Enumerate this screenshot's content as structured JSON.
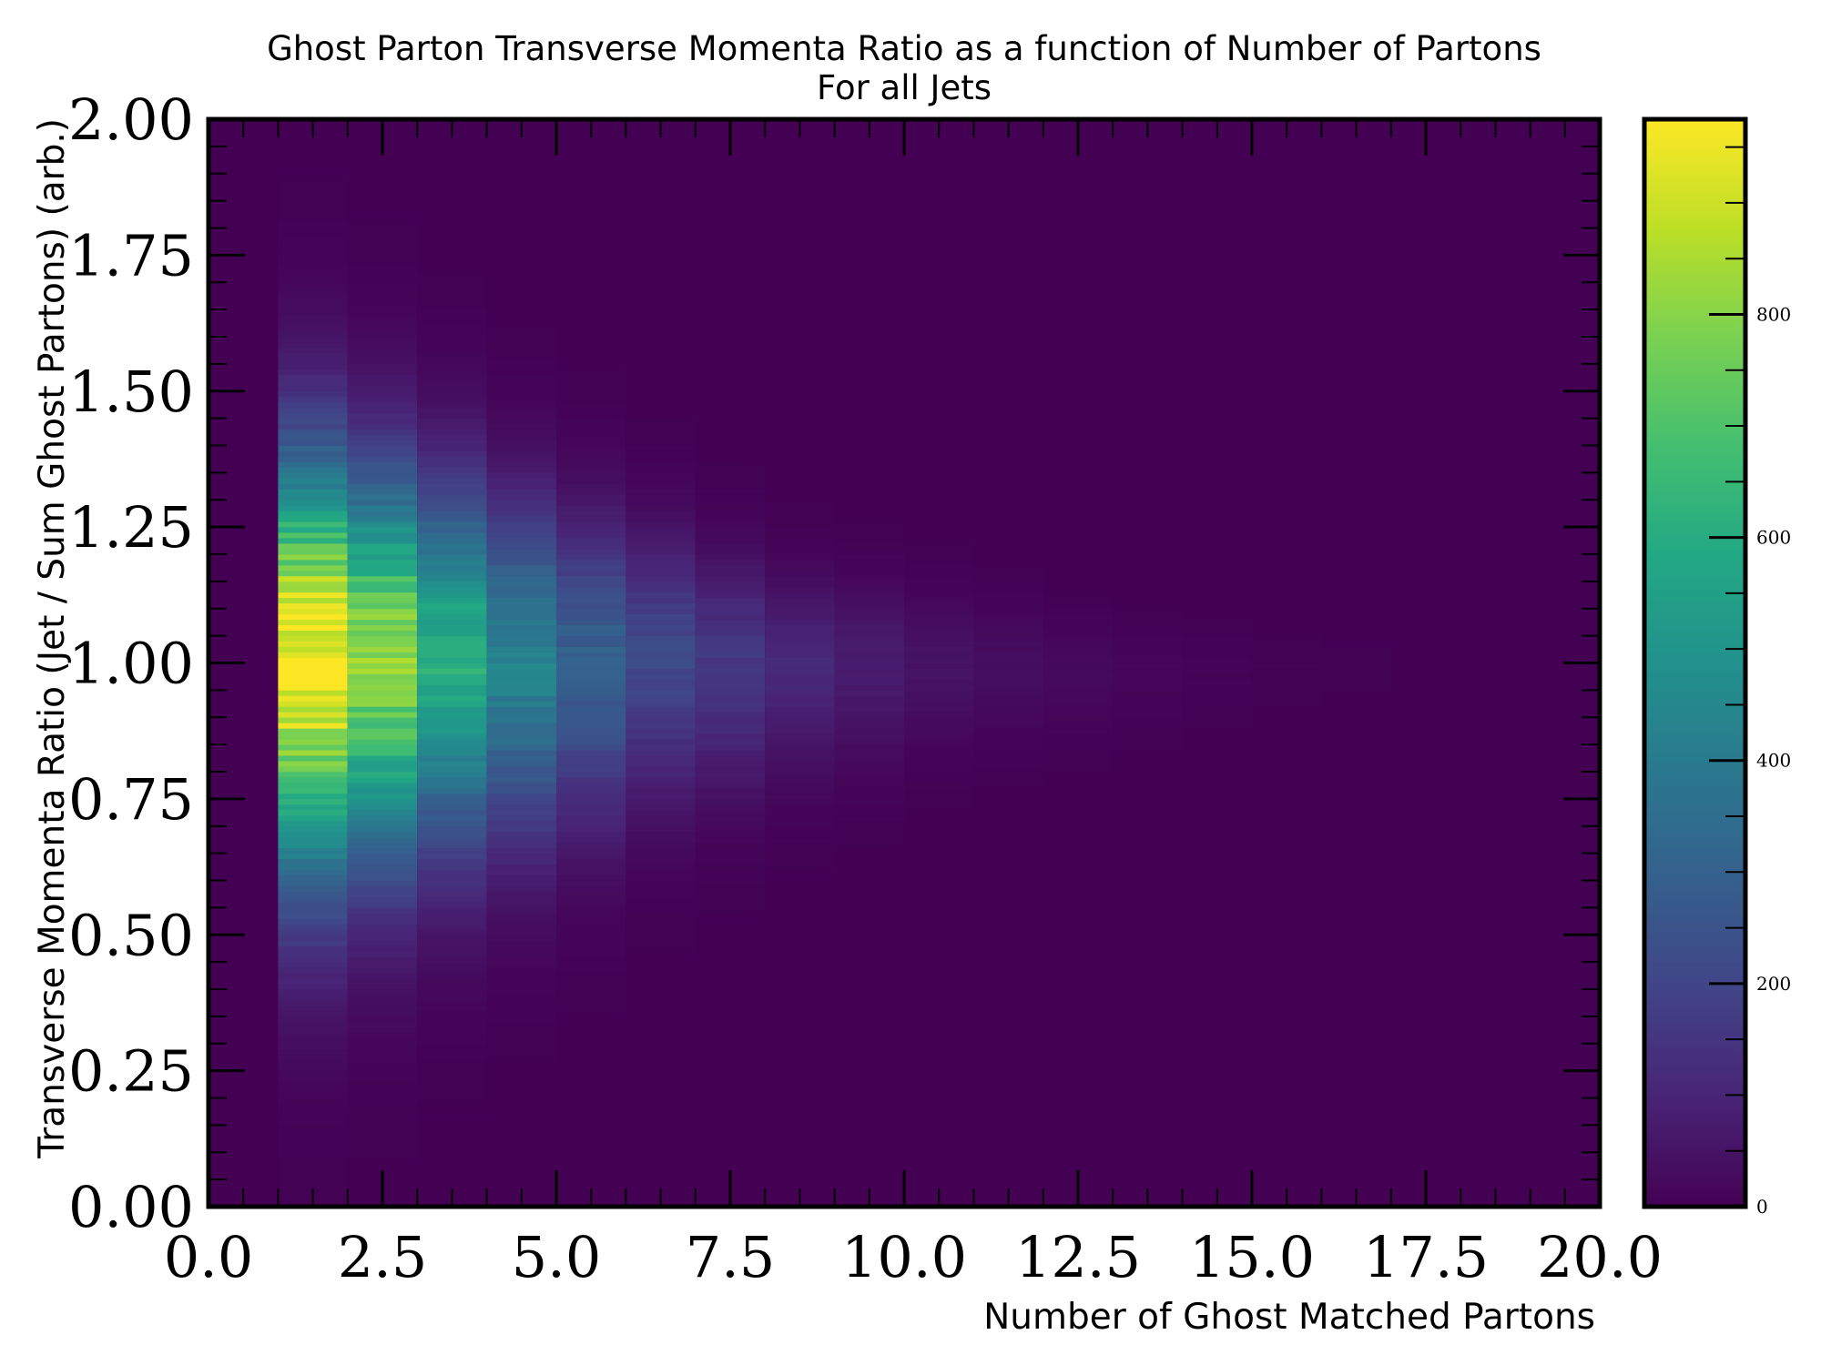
{
  "chart_data": {
    "type": "heatmap",
    "title": "Ghost Parton Transverse Momenta Ratio as a function of Number of Partons",
    "subtitle": "For all Jets",
    "xlabel": "Number of Ghost Matched Partons",
    "ylabel": "Transverse Momenta Ratio (Jet / Sum Ghost Partons) (arb.)",
    "xlim": [
      0,
      20
    ],
    "ylim": [
      0,
      2
    ],
    "xticks": [
      0,
      2.5,
      5,
      7.5,
      10,
      12.5,
      15,
      17.5,
      20
    ],
    "xtick_labels": [
      "0.0",
      "2.5",
      "5.0",
      "7.5",
      "10.0",
      "12.5",
      "15.0",
      "17.5",
      "20.0"
    ],
    "yticks": [
      0,
      0.25,
      0.5,
      0.75,
      1.0,
      1.25,
      1.5,
      1.75,
      2.0
    ],
    "ytick_labels": [
      "0.00",
      "0.25",
      "0.50",
      "0.75",
      "1.00",
      "1.25",
      "1.50",
      "1.75",
      "2.00"
    ],
    "x_bins": [
      0,
      1,
      2,
      3,
      4,
      5,
      6,
      7,
      8,
      9,
      10,
      11,
      12,
      13,
      14,
      15,
      16,
      17,
      18,
      19,
      20
    ],
    "y_bin_width": 0.01,
    "column_profiles": [
      {
        "x_bin": [
          1,
          2
        ],
        "peak_count": 975,
        "peak_y": 1.02,
        "sigma_lo": 0.28,
        "sigma_hi": 0.24
      },
      {
        "x_bin": [
          2,
          3
        ],
        "peak_count": 800,
        "peak_y": 1.02,
        "sigma_lo": 0.26,
        "sigma_hi": 0.22
      },
      {
        "x_bin": [
          3,
          4
        ],
        "peak_count": 600,
        "peak_y": 1.02,
        "sigma_lo": 0.24,
        "sigma_hi": 0.2
      },
      {
        "x_bin": [
          4,
          5
        ],
        "peak_count": 430,
        "peak_y": 1.01,
        "sigma_lo": 0.22,
        "sigma_hi": 0.18
      },
      {
        "x_bin": [
          5,
          6
        ],
        "peak_count": 300,
        "peak_y": 1.01,
        "sigma_lo": 0.2,
        "sigma_hi": 0.16
      },
      {
        "x_bin": [
          6,
          7
        ],
        "peak_count": 210,
        "peak_y": 1.01,
        "sigma_lo": 0.17,
        "sigma_hi": 0.14
      },
      {
        "x_bin": [
          7,
          8
        ],
        "peak_count": 160,
        "peak_y": 1.0,
        "sigma_lo": 0.15,
        "sigma_hi": 0.12
      },
      {
        "x_bin": [
          8,
          9
        ],
        "peak_count": 110,
        "peak_y": 1.0,
        "sigma_lo": 0.13,
        "sigma_hi": 0.1
      },
      {
        "x_bin": [
          9,
          10
        ],
        "peak_count": 75,
        "peak_y": 1.0,
        "sigma_lo": 0.12,
        "sigma_hi": 0.09
      },
      {
        "x_bin": [
          10,
          11
        ],
        "peak_count": 50,
        "peak_y": 1.0,
        "sigma_lo": 0.1,
        "sigma_hi": 0.08
      },
      {
        "x_bin": [
          11,
          12
        ],
        "peak_count": 35,
        "peak_y": 1.0,
        "sigma_lo": 0.09,
        "sigma_hi": 0.07
      },
      {
        "x_bin": [
          12,
          13
        ],
        "peak_count": 24,
        "peak_y": 0.99,
        "sigma_lo": 0.08,
        "sigma_hi": 0.06
      },
      {
        "x_bin": [
          13,
          14
        ],
        "peak_count": 15,
        "peak_y": 0.99,
        "sigma_lo": 0.07,
        "sigma_hi": 0.05
      },
      {
        "x_bin": [
          14,
          15
        ],
        "peak_count": 8,
        "peak_y": 0.99,
        "sigma_lo": 0.06,
        "sigma_hi": 0.05
      },
      {
        "x_bin": [
          15,
          16
        ],
        "peak_count": 4,
        "peak_y": 0.99,
        "sigma_lo": 0.05,
        "sigma_hi": 0.04
      },
      {
        "x_bin": [
          16,
          17
        ],
        "peak_count": 2,
        "peak_y": 0.99,
        "sigma_lo": 0.05,
        "sigma_hi": 0.04
      }
    ],
    "colormap": "viridis",
    "colorbar": {
      "range": [
        0,
        975
      ],
      "ticks": [
        0,
        200,
        400,
        600,
        800
      ],
      "tick_labels": [
        "0",
        "200",
        "400",
        "600",
        "800"
      ],
      "minor_step": 50
    },
    "grid": false
  }
}
